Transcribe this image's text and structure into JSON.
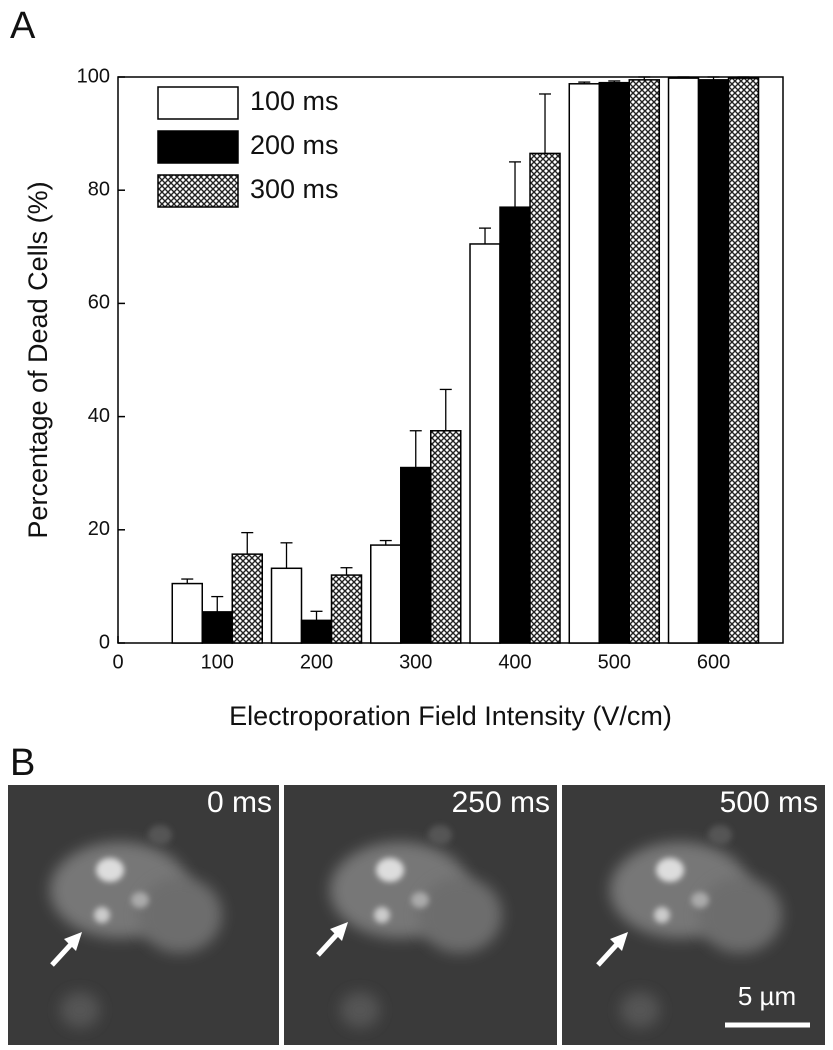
{
  "panel_labels": [
    "A",
    "B"
  ],
  "chart_data": {
    "type": "bar",
    "x_label": "Electroporation Field Intensity (V/cm)",
    "y_label": "Percentage of Dead Cells (%)",
    "x": [
      100,
      200,
      300,
      400,
      500,
      600
    ],
    "xlim": [
      0,
      670
    ],
    "xticks": [
      0,
      100,
      200,
      300,
      400,
      500,
      600
    ],
    "ylim": [
      0,
      100
    ],
    "yticks": [
      0,
      20,
      40,
      60,
      80,
      100
    ],
    "legend": "upper left",
    "grid": false,
    "series": [
      {
        "name": "100 ms",
        "color": "#ffffff",
        "pattern": "solid",
        "values": [
          10.5,
          13.2,
          17.3,
          70.5,
          98.8,
          99.8
        ],
        "errors": [
          0.8,
          4.5,
          0.8,
          2.8,
          0.3,
          0.2
        ]
      },
      {
        "name": "200 ms",
        "color": "#000000",
        "pattern": "solid",
        "values": [
          5.5,
          4,
          31,
          77,
          99,
          99.5
        ],
        "errors": [
          2.7,
          1.6,
          6.5,
          8,
          0.3,
          0.5
        ]
      },
      {
        "name": "300 ms",
        "color": "#ffffff",
        "pattern": "crosshatch",
        "values": [
          15.7,
          12,
          37.5,
          86.5,
          99.5,
          99.8
        ],
        "errors": [
          3.8,
          1.3,
          7.3,
          10.5,
          0.5,
          0.2
        ]
      }
    ]
  },
  "images": {
    "frames": [
      "0 ms",
      "250 ms",
      "500 ms"
    ],
    "scale_bar": "5 µm"
  }
}
